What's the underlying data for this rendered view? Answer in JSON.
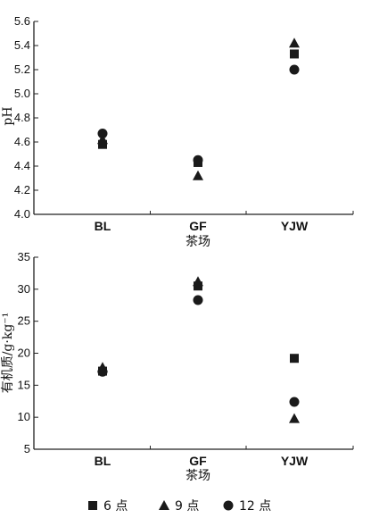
{
  "chart_data": [
    {
      "type": "scatter",
      "categories": [
        "BL",
        "GF",
        "YJW"
      ],
      "series": [
        {
          "name": "6 点",
          "marker": "square",
          "values": [
            4.58,
            4.43,
            5.33
          ]
        },
        {
          "name": "9 点",
          "marker": "triangle",
          "values": [
            4.62,
            4.32,
            5.42
          ]
        },
        {
          "name": "12 点",
          "marker": "circle",
          "values": [
            4.67,
            4.45,
            5.2
          ]
        }
      ],
      "xlabel": "茶场",
      "ylabel": "pH",
      "ylim": [
        4.0,
        5.6
      ],
      "yticks": [
        4.0,
        4.2,
        4.4,
        4.6,
        4.8,
        5.0,
        5.2,
        5.4,
        5.6
      ],
      "grid": false
    },
    {
      "type": "scatter",
      "categories": [
        "BL",
        "GF",
        "YJW"
      ],
      "series": [
        {
          "name": "6 点",
          "marker": "square",
          "values": [
            17.2,
            30.5,
            19.2
          ]
        },
        {
          "name": "9 点",
          "marker": "triangle",
          "values": [
            17.8,
            31.2,
            9.8
          ]
        },
        {
          "name": "12 点",
          "marker": "circle",
          "values": [
            17.1,
            28.3,
            12.4
          ]
        }
      ],
      "xlabel": "茶场",
      "ylabel": "有机质/g·kg⁻¹",
      "ylim": [
        5,
        35
      ],
      "yticks": [
        5,
        10,
        15,
        20,
        25,
        30,
        35
      ],
      "grid": false
    }
  ],
  "legend": {
    "placement": "bottom",
    "items": [
      {
        "label": "6 点",
        "marker": "square"
      },
      {
        "label": "9 点",
        "marker": "triangle"
      },
      {
        "label": "12 点",
        "marker": "circle"
      }
    ]
  },
  "colors": {
    "marker": "#1a1a1a",
    "axis": "#222222"
  }
}
